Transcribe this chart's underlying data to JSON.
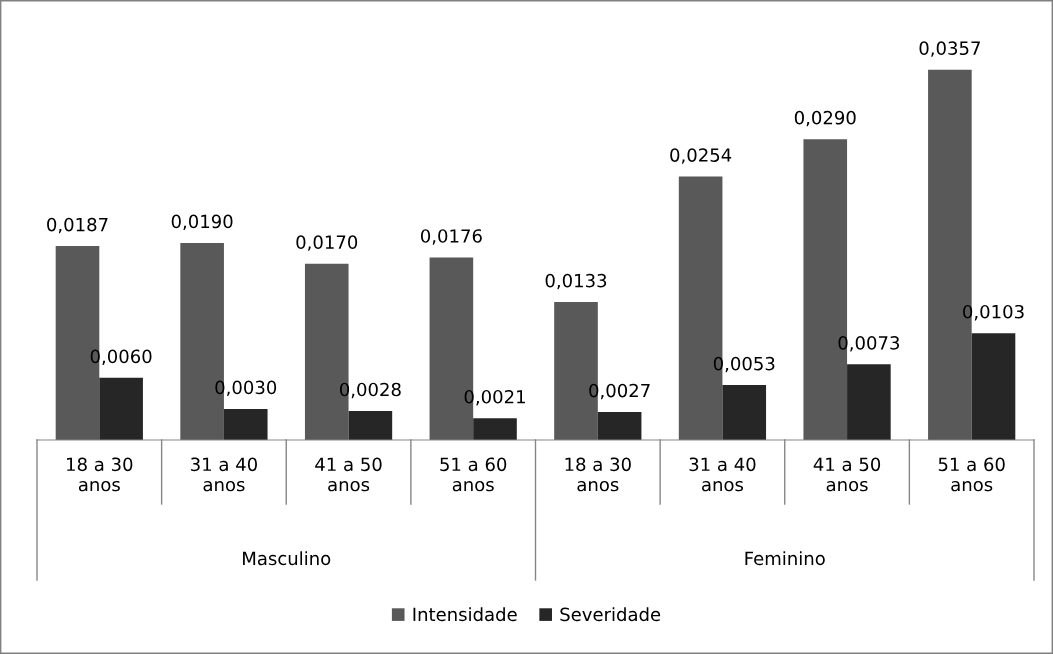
{
  "chart_data": {
    "type": "bar",
    "categories": [
      "18 a 30 anos",
      "31 a 40 anos",
      "41 a 50 anos",
      "51 a 60 anos",
      "18 a 30 anos",
      "31 a 40 anos",
      "41 a 50 anos",
      "51 a 60 anos"
    ],
    "series": [
      {
        "name": "Intensidade",
        "color": "#595959",
        "values": [
          0.0187,
          0.019,
          0.017,
          0.0176,
          0.0133,
          0.0254,
          0.029,
          0.0357
        ],
        "value_labels": [
          "0,0187",
          "0,0190",
          "0,0170",
          "0,0176",
          "0,0133",
          "0,0254",
          "0,0290",
          "0,0357"
        ]
      },
      {
        "name": "Severidade",
        "color": "#262626",
        "values": [
          0.006,
          0.003,
          0.0028,
          0.0021,
          0.0027,
          0.0053,
          0.0073,
          0.0103
        ],
        "value_labels": [
          "0,0060",
          "0,0030",
          "0,0028",
          "0,0021",
          "0,0027",
          "0,0053",
          "0,0073",
          "0,0103"
        ]
      }
    ],
    "annotations": [
      "Masculino",
      "Feminino"
    ],
    "legend": "bottom"
  }
}
